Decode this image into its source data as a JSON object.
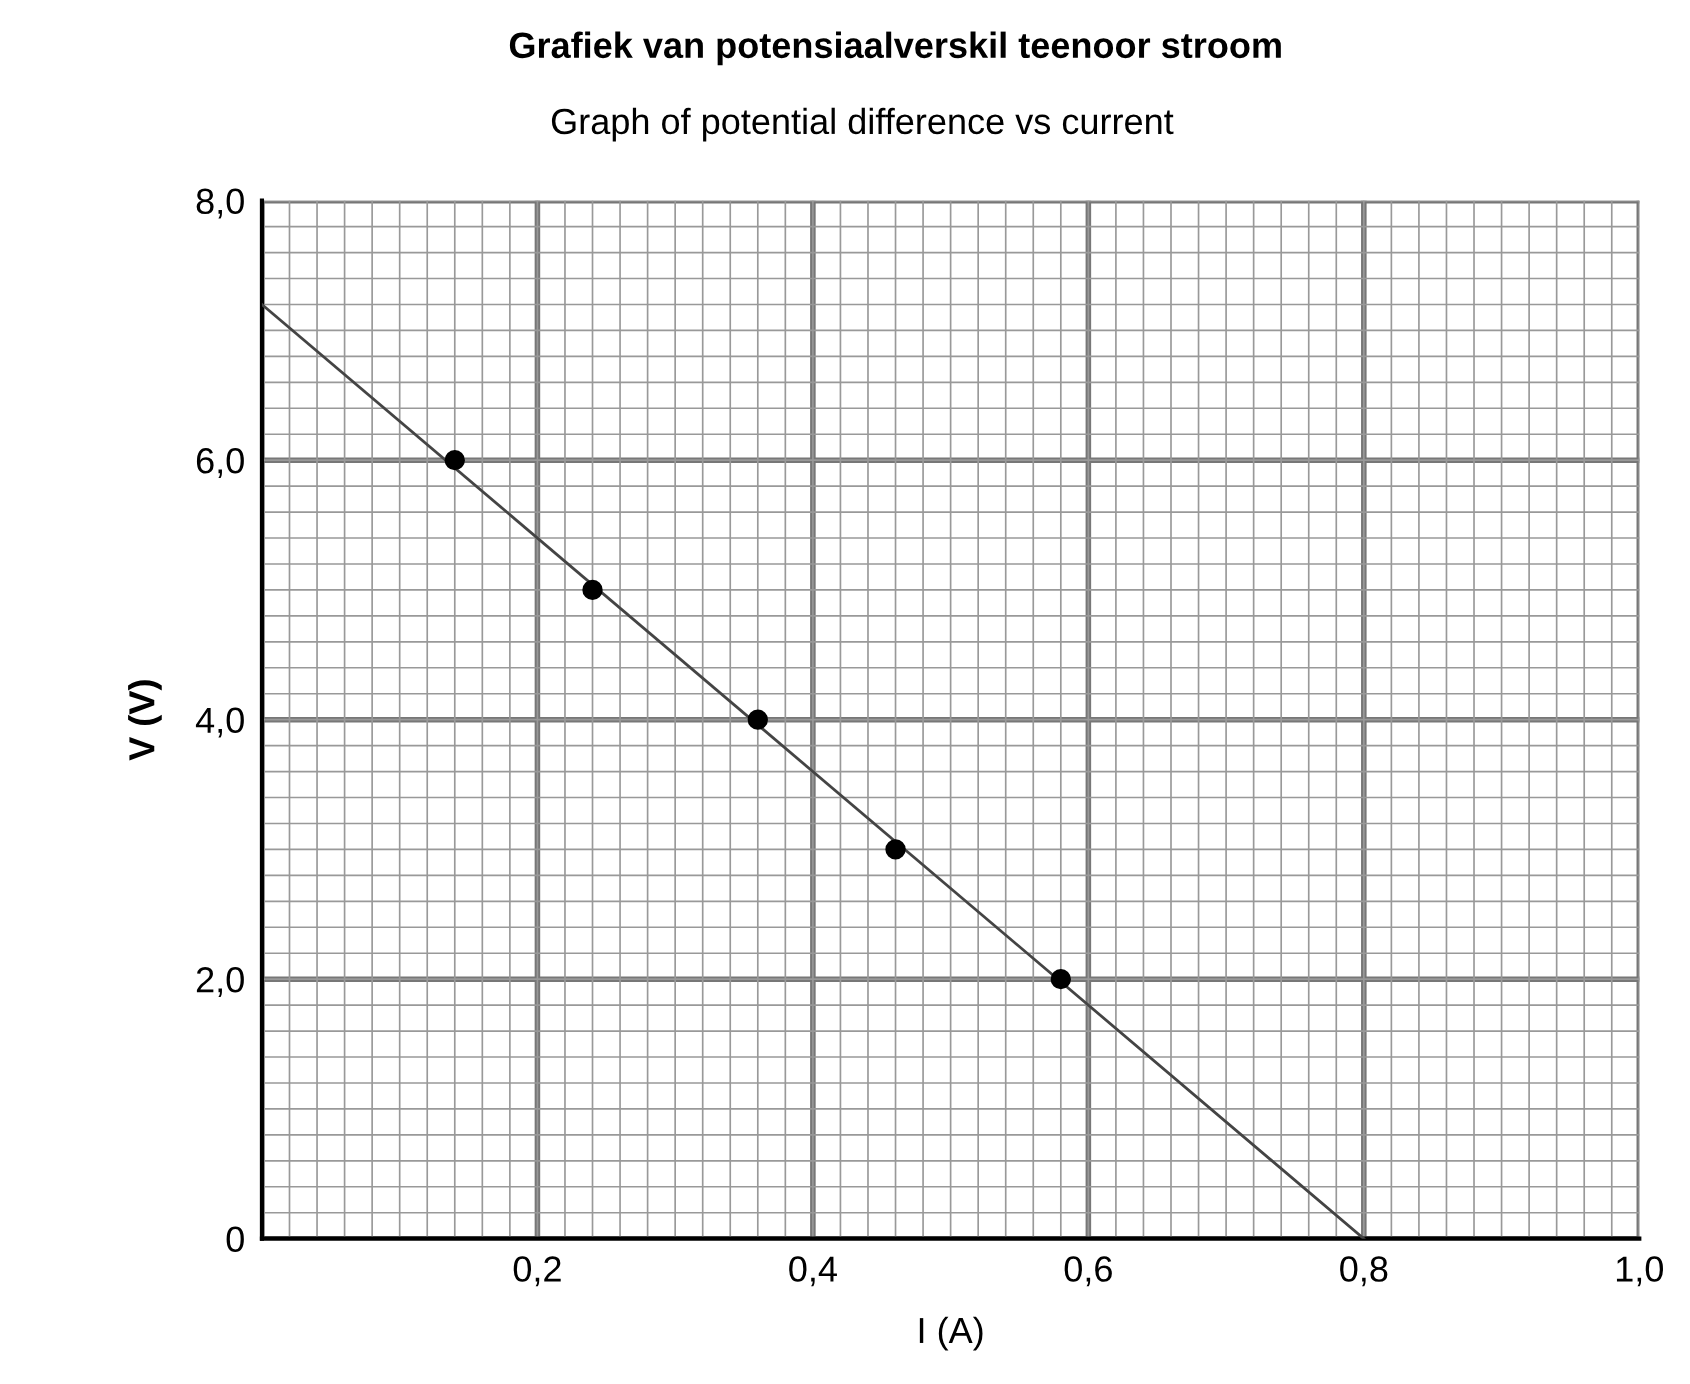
{
  "chart_data": {
    "type": "scatter",
    "title": "Grafiek van potensiaalverskil teenoor stroom",
    "subtitle": "Graph of potential difference vs current",
    "xlabel": "I (A)",
    "ylabel": "V (V)",
    "series": [
      {
        "color": "#000000",
        "marker": "circle",
        "x": [
          0.14,
          0.24,
          0.36,
          0.46,
          0.58
        ],
        "values": [
          6.0,
          5.0,
          4.0,
          3.0,
          2.0
        ]
      },
      {
        "type": "line",
        "color": "#444444",
        "marker": "none",
        "line_style": "solid",
        "x": [
          0,
          0.8
        ],
        "values": [
          7.2,
          0
        ]
      }
    ],
    "xlim": [
      0,
      1.0
    ],
    "ylim": [
      0,
      8.0
    ],
    "xticks": [
      {
        "value": 0,
        "label": null
      },
      {
        "value": 0.2,
        "label": "0,2"
      },
      {
        "value": 0.4,
        "label": "0,4"
      },
      {
        "value": 0.6,
        "label": "0,6"
      },
      {
        "value": 0.8,
        "label": "0,8"
      },
      {
        "value": 1.0,
        "label": "1,0"
      }
    ],
    "yticks": [
      {
        "value": 0,
        "label": "0"
      },
      {
        "value": 2.0,
        "label": "2,0"
      },
      {
        "value": 4.0,
        "label": "4,0"
      },
      {
        "value": 6.0,
        "label": "6,0"
      },
      {
        "value": 8.0,
        "label": "8,0"
      }
    ],
    "grid": true,
    "legend": false
  }
}
